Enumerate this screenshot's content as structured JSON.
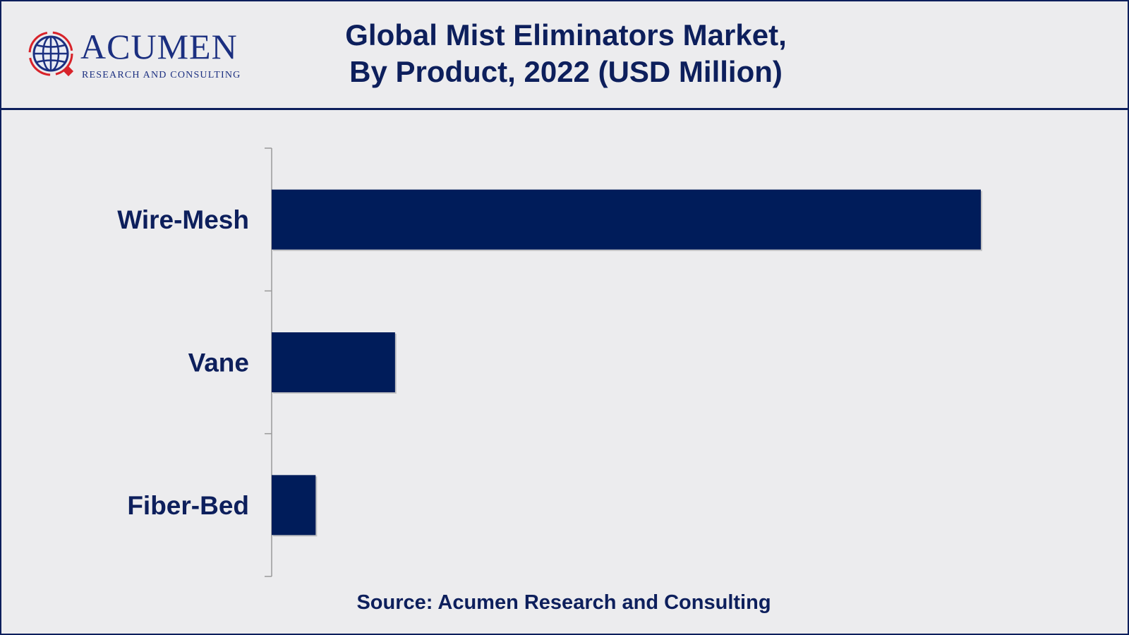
{
  "header": {
    "logo_name": "ACUMEN",
    "logo_tagline": "RESEARCH AND CONSULTING",
    "title_line1": "Global Mist Eliminators Market,",
    "title_line2": "By Product, 2022 (USD Million)"
  },
  "footer": {
    "source": "Source: Acumen Research and Consulting"
  },
  "colors": {
    "bar": "#001c5a",
    "text": "#0d1f5c",
    "logo_red": "#d8232a"
  },
  "chart_data": {
    "type": "bar",
    "orientation": "horizontal",
    "title": "Global Mist Eliminators Market, By Product, 2022 (USD Million)",
    "categories": [
      "Wire-Mesh",
      "Vane",
      "Fiber-Bed"
    ],
    "values": [
      100,
      17.4,
      6.2
    ],
    "xlabel": "",
    "ylabel": "",
    "xlim": [
      0,
      110
    ],
    "grid": false,
    "legend": "none"
  }
}
